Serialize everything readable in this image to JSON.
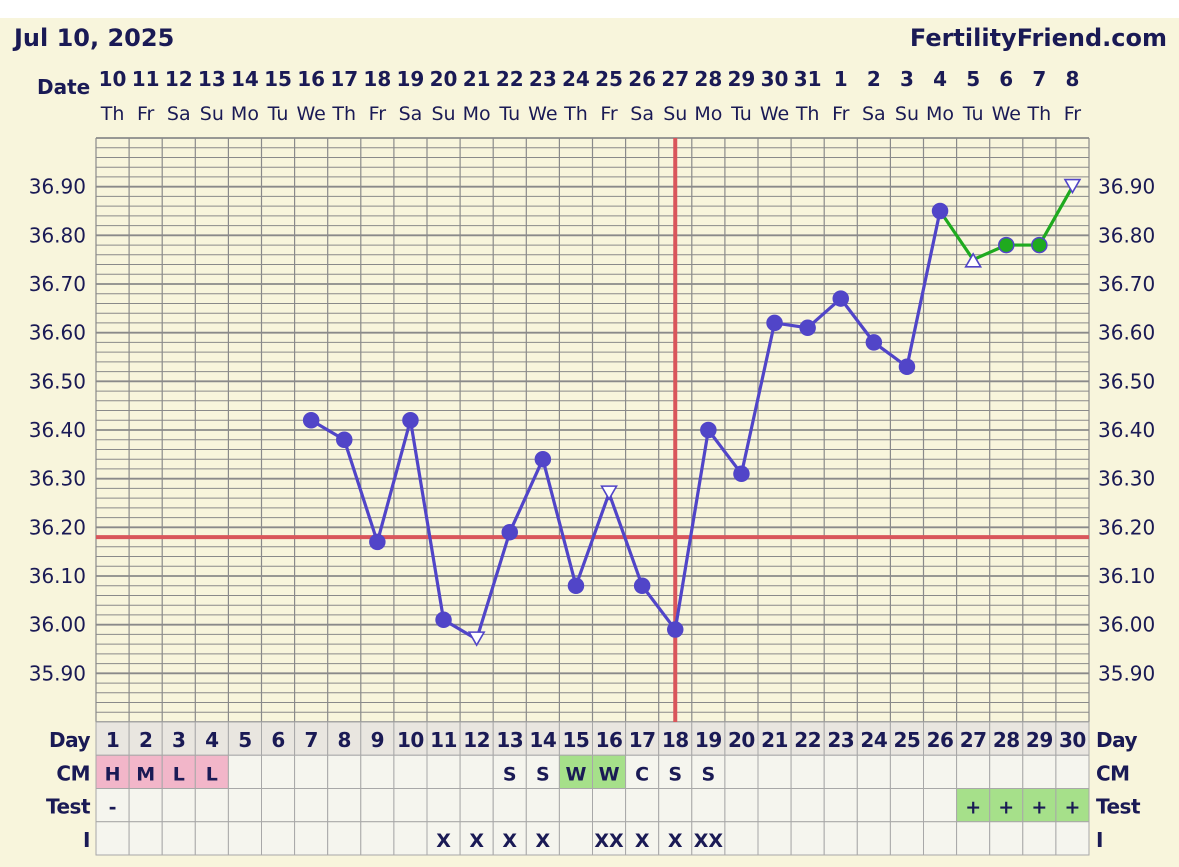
{
  "header": {
    "chart_date": "Jul 10, 2025",
    "site": "FertilityFriend.com",
    "date_row_label": "Date"
  },
  "colors": {
    "background": "#f8f5dc",
    "grid": "#8a8a8a",
    "series_main": "#5145c8",
    "series_late": "#1faa1f",
    "coverline": "#d9565b",
    "ovulation_line": "#d9565b",
    "cm_period": "#f2b6c9",
    "cm_wet": "#a6e08a",
    "test_positive": "#a6e08a",
    "table_cell": "#f5f5ee"
  },
  "chart_data": {
    "type": "line",
    "ylim": [
      35.8,
      37.0
    ],
    "yticks": [
      "36.90",
      "36.80",
      "36.70",
      "36.60",
      "36.50",
      "36.40",
      "36.30",
      "36.20",
      "36.10",
      "36.00",
      "35.90"
    ],
    "dates": [
      "10",
      "11",
      "12",
      "13",
      "14",
      "15",
      "16",
      "17",
      "18",
      "19",
      "20",
      "21",
      "22",
      "23",
      "24",
      "25",
      "26",
      "27",
      "28",
      "29",
      "30",
      "31",
      "1",
      "2",
      "3",
      "4",
      "5",
      "6",
      "7",
      "8"
    ],
    "weekdays": [
      "Th",
      "Fr",
      "Sa",
      "Su",
      "Mo",
      "Tu",
      "We",
      "Th",
      "Fr",
      "Sa",
      "Su",
      "Mo",
      "Tu",
      "We",
      "Th",
      "Fr",
      "Sa",
      "Su",
      "Mo",
      "Tu",
      "We",
      "Th",
      "Fr",
      "Sa",
      "Su",
      "Mo",
      "Tu",
      "We",
      "Th",
      "Fr"
    ],
    "days": [
      1,
      2,
      3,
      4,
      5,
      6,
      7,
      8,
      9,
      10,
      11,
      12,
      13,
      14,
      15,
      16,
      17,
      18,
      19,
      20,
      21,
      22,
      23,
      24,
      25,
      26,
      27,
      28,
      29,
      30
    ],
    "coverline": 36.18,
    "ovulation_day": 18,
    "series": [
      {
        "points": [
          {
            "day": 7,
            "temp": 36.42,
            "marker": "circle"
          },
          {
            "day": 8,
            "temp": 36.38,
            "marker": "circle"
          },
          {
            "day": 9,
            "temp": 36.17,
            "marker": "circle"
          },
          {
            "day": 10,
            "temp": 36.42,
            "marker": "circle"
          },
          {
            "day": 11,
            "temp": 36.01,
            "marker": "circle"
          },
          {
            "day": 12,
            "temp": 35.97,
            "marker": "triangle-down"
          },
          {
            "day": 13,
            "temp": 36.19,
            "marker": "circle"
          },
          {
            "day": 14,
            "temp": 36.34,
            "marker": "circle"
          },
          {
            "day": 15,
            "temp": 36.08,
            "marker": "circle"
          },
          {
            "day": 16,
            "temp": 36.27,
            "marker": "triangle-down"
          },
          {
            "day": 17,
            "temp": 36.08,
            "marker": "circle"
          },
          {
            "day": 18,
            "temp": 35.99,
            "marker": "circle"
          },
          {
            "day": 19,
            "temp": 36.4,
            "marker": "circle"
          },
          {
            "day": 20,
            "temp": 36.31,
            "marker": "circle"
          },
          {
            "day": 21,
            "temp": 36.62,
            "marker": "circle"
          },
          {
            "day": 22,
            "temp": 36.61,
            "marker": "circle"
          },
          {
            "day": 23,
            "temp": 36.67,
            "marker": "circle"
          },
          {
            "day": 24,
            "temp": 36.58,
            "marker": "circle"
          },
          {
            "day": 25,
            "temp": 36.53,
            "marker": "circle"
          },
          {
            "day": 26,
            "temp": 36.85,
            "marker": "circle"
          }
        ]
      },
      {
        "points": [
          {
            "day": 26,
            "temp": 36.85,
            "marker": "none"
          },
          {
            "day": 27,
            "temp": 36.75,
            "marker": "triangle-up"
          },
          {
            "day": 28,
            "temp": 36.78,
            "marker": "circle"
          },
          {
            "day": 29,
            "temp": 36.78,
            "marker": "circle"
          },
          {
            "day": 30,
            "temp": 36.9,
            "marker": "triangle-down"
          }
        ]
      }
    ],
    "rows": {
      "labels": {
        "day": "Day",
        "cm": "CM",
        "test": "Test",
        "i": "I"
      },
      "cm": [
        "H",
        "M",
        "L",
        "L",
        "",
        "",
        "",
        "",
        "",
        "",
        "",
        "",
        "S",
        "S",
        "W",
        "W",
        "C",
        "S",
        "S",
        "",
        "",
        "",
        "",
        "",
        "",
        "",
        "",
        "",
        "",
        ""
      ],
      "cm_styles": [
        "period",
        "period",
        "period",
        "period",
        "",
        "",
        "",
        "",
        "",
        "",
        "",
        "",
        "",
        "",
        "wet",
        "wet",
        "",
        "",
        "",
        "",
        "",
        "",
        "",
        "",
        "",
        "",
        "",
        "",
        "",
        ""
      ],
      "test": [
        "-",
        "",
        "",
        "",
        "",
        "",
        "",
        "",
        "",
        "",
        "",
        "",
        "",
        "",
        "",
        "",
        "",
        "",
        "",
        "",
        "",
        "",
        "",
        "",
        "",
        "",
        "+",
        "+",
        "+",
        "+"
      ],
      "test_styles": [
        "",
        "",
        "",
        "",
        "",
        "",
        "",
        "",
        "",
        "",
        "",
        "",
        "",
        "",
        "",
        "",
        "",
        "",
        "",
        "",
        "",
        "",
        "",
        "",
        "",
        "",
        "positive",
        "positive",
        "positive",
        "positive"
      ],
      "i": [
        "",
        "",
        "",
        "",
        "",
        "",
        "",
        "",
        "",
        "",
        "X",
        "X",
        "X",
        "X",
        "",
        "XX",
        "X",
        "X",
        "XX",
        "",
        "",
        "",
        "",
        "",
        "",
        "",
        "",
        "",
        "",
        ""
      ]
    }
  }
}
